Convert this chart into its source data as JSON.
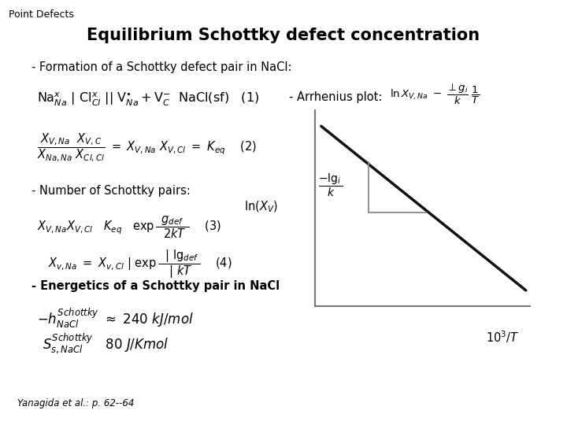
{
  "title": "Equilibrium Schottky defect concentration",
  "header": "Point Defects",
  "footer": "Yanagida et al.: p. 62--64",
  "bg": "#ffffff"
}
